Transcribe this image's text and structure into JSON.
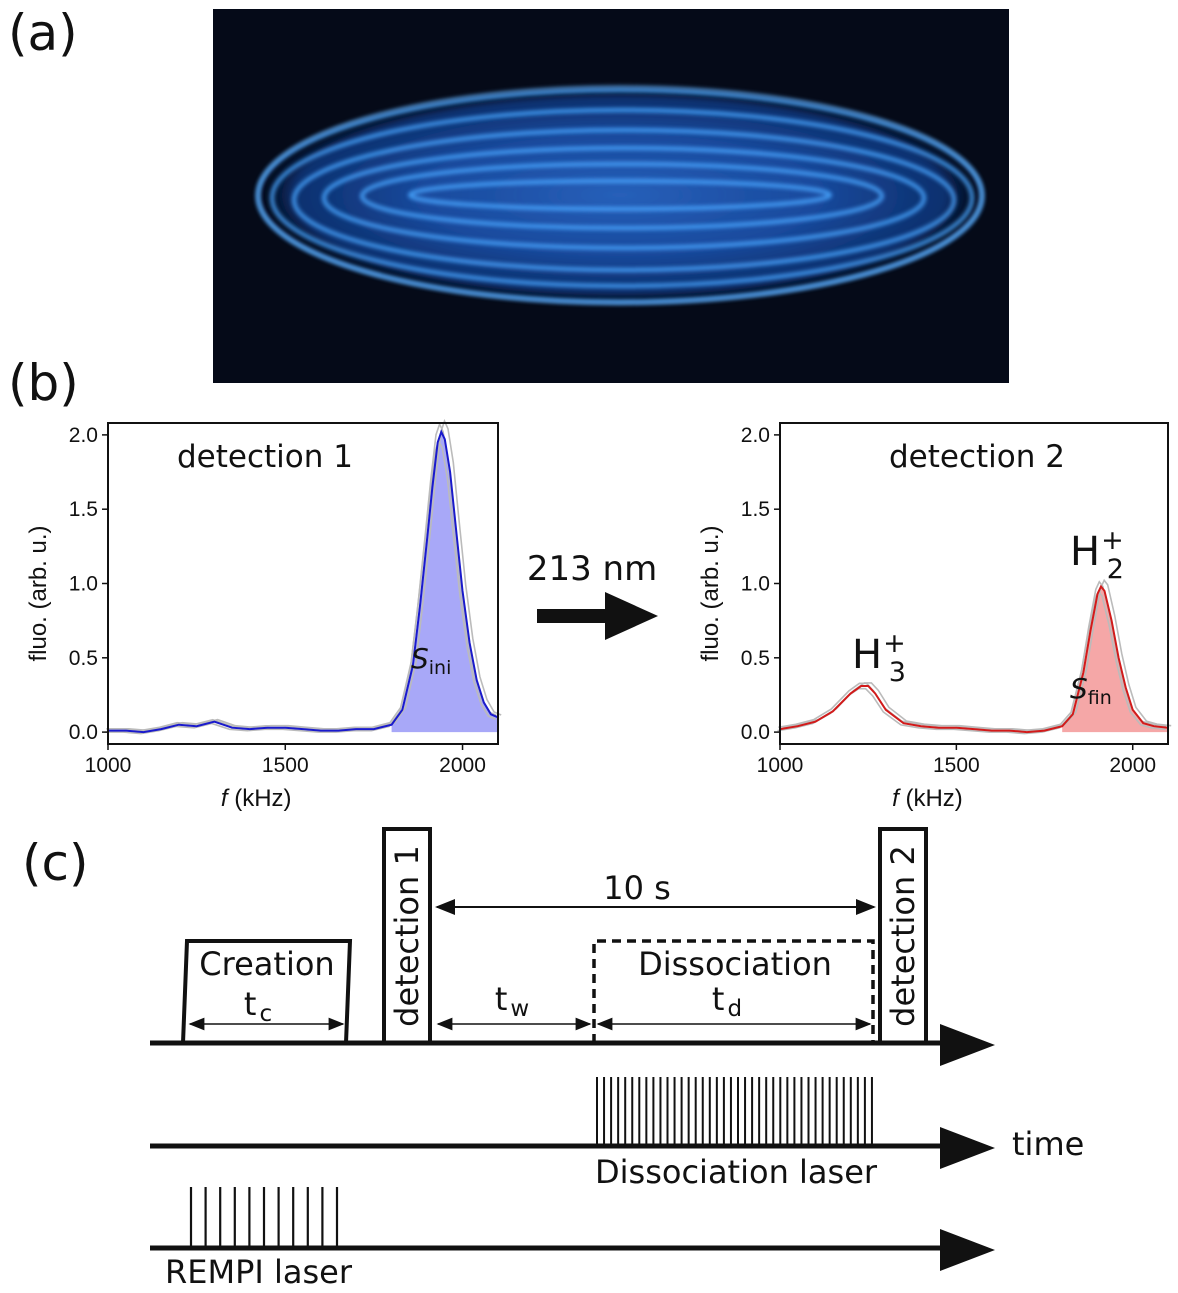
{
  "panels": {
    "a": "(a)",
    "b": "(b)",
    "c": "(c)"
  },
  "colors": {
    "crystal_glow": "#1f7fff",
    "series1_fill": "#a8a8f8",
    "series1_line": "#1a1acc",
    "series2_fill": "#f5a7a7",
    "series2_line": "#d21a1a",
    "repeat_line": "#bbbbbb"
  },
  "arrow": {
    "label": "213 nm"
  },
  "chart_data": [
    {
      "type": "line",
      "title": "detection 1",
      "xlabel_italic": "f",
      "xlabel_rest": " (kHz)",
      "ylabel": "fluo. (arb. u.)",
      "xlim": [
        1000,
        2100
      ],
      "ylim": [
        -0.08,
        2.08
      ],
      "xticks": [
        1000,
        1500,
        2000
      ],
      "xtick_labels": [
        "1000",
        "1500",
        "2000"
      ],
      "yticks": [
        0,
        0.5,
        1.0,
        1.5,
        2.0
      ],
      "ytick_labels": [
        "0.0",
        "0.5",
        "1.0",
        "1.5",
        "2.0"
      ],
      "fill_label": {
        "main": "S",
        "sub": "ini"
      },
      "series": [
        {
          "x": [
            1000,
            1050,
            1100,
            1150,
            1200,
            1250,
            1300,
            1350,
            1400,
            1450,
            1500,
            1550,
            1600,
            1650,
            1700,
            1750,
            1800,
            1830,
            1860,
            1880,
            1900,
            1915,
            1930,
            1940,
            1950,
            1965,
            1980,
            2000,
            2020,
            2040,
            2060,
            2080,
            2100
          ],
          "y": [
            0.01,
            0.01,
            0.0,
            0.02,
            0.05,
            0.04,
            0.07,
            0.03,
            0.02,
            0.03,
            0.03,
            0.02,
            0.01,
            0.01,
            0.02,
            0.02,
            0.05,
            0.15,
            0.45,
            0.85,
            1.3,
            1.65,
            1.95,
            2.02,
            1.97,
            1.75,
            1.4,
            0.95,
            0.6,
            0.35,
            0.2,
            0.12,
            0.1
          ]
        }
      ]
    },
    {
      "type": "line",
      "title": "detection 2",
      "xlabel_italic": "f",
      "xlabel_rest": " (kHz)",
      "ylabel": "fluo. (arb. u.)",
      "xlim": [
        1000,
        2100
      ],
      "ylim": [
        -0.08,
        2.08
      ],
      "xticks": [
        1000,
        1500,
        2000
      ],
      "xtick_labels": [
        "1000",
        "1500",
        "2000"
      ],
      "yticks": [
        0,
        0.5,
        1.0,
        1.5,
        2.0
      ],
      "ytick_labels": [
        "0.0",
        "0.5",
        "1.0",
        "1.5",
        "2.0"
      ],
      "fill_label": {
        "main": "S",
        "sub": "fin"
      },
      "peak_labels": [
        {
          "base": "H",
          "sub": "3",
          "sup": "+"
        },
        {
          "base": "H",
          "sub": "2",
          "sup": "+"
        }
      ],
      "series": [
        {
          "x": [
            1000,
            1050,
            1100,
            1150,
            1200,
            1230,
            1250,
            1270,
            1300,
            1350,
            1400,
            1450,
            1500,
            1550,
            1600,
            1650,
            1700,
            1750,
            1800,
            1830,
            1860,
            1880,
            1900,
            1910,
            1920,
            1940,
            1960,
            1980,
            2000,
            2030,
            2060,
            2100
          ],
          "y": [
            0.02,
            0.04,
            0.07,
            0.14,
            0.26,
            0.31,
            0.31,
            0.26,
            0.15,
            0.06,
            0.04,
            0.03,
            0.03,
            0.02,
            0.01,
            0.01,
            0.0,
            0.01,
            0.04,
            0.12,
            0.4,
            0.68,
            0.93,
            0.98,
            0.95,
            0.75,
            0.5,
            0.3,
            0.15,
            0.06,
            0.04,
            0.03
          ]
        }
      ]
    }
  ],
  "timing": {
    "creation_label": "Creation",
    "creation_time": {
      "main": "t",
      "sub": "c"
    },
    "detection1_label": "detection 1",
    "detection2_label": "detection 2",
    "duration_label": "10 s",
    "wait_time": {
      "main": "t",
      "sub": "w"
    },
    "dissociation_label": "Dissociation",
    "dissociation_time": {
      "main": "t",
      "sub": "d"
    },
    "time_axis_label": "time",
    "dissociation_laser_label": "Dissociation laser",
    "rempi_laser_label": "REMPI laser"
  }
}
